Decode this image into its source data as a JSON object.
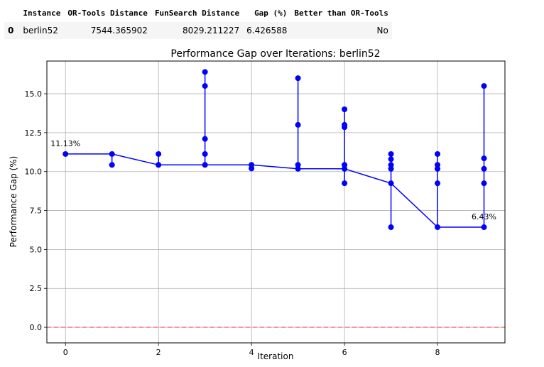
{
  "table": {
    "columns": [
      "",
      "Instance",
      "OR-Tools Distance",
      "FunSearch Distance",
      "Gap (%)",
      "Better than OR-Tools"
    ],
    "rows": [
      [
        "0",
        "berlin52",
        "7544.365902",
        "8029.211227",
        "6.426588",
        "No"
      ]
    ]
  },
  "chart_data": {
    "type": "line",
    "title": "Performance Gap over Iterations: berlin52",
    "xlabel": "Iteration",
    "ylabel": "Performance Gap (%)",
    "xlim": [
      -0.4,
      9.45
    ],
    "ylim": [
      -1.0,
      17.1
    ],
    "xticks": [
      0,
      2,
      4,
      6,
      8
    ],
    "yticks": [
      0.0,
      2.5,
      5.0,
      7.5,
      10.0,
      12.5,
      15.0
    ],
    "grid": true,
    "series_color": "#0000ff",
    "reference_line": {
      "y": 0.0,
      "color": "#ff4d4d",
      "style": "dashed"
    },
    "best_per_iteration": {
      "x": [
        0,
        1,
        2,
        3,
        4,
        5,
        6,
        7,
        8,
        9
      ],
      "y": [
        11.13,
        11.13,
        10.43,
        10.43,
        10.43,
        10.18,
        10.18,
        9.25,
        6.43,
        6.43
      ]
    },
    "scatter": [
      {
        "x": 0,
        "y": [
          11.13
        ]
      },
      {
        "x": 1,
        "y": [
          11.13,
          10.43
        ]
      },
      {
        "x": 2,
        "y": [
          11.13,
          10.43
        ]
      },
      {
        "x": 3,
        "y": [
          16.4,
          15.5,
          12.1,
          11.13,
          10.43
        ]
      },
      {
        "x": 4,
        "y": [
          10.43,
          10.2
        ]
      },
      {
        "x": 5,
        "y": [
          16.0,
          13.0,
          10.43,
          10.18
        ]
      },
      {
        "x": 6,
        "y": [
          14.0,
          13.0,
          12.85,
          10.43,
          10.18,
          9.25
        ]
      },
      {
        "x": 7,
        "y": [
          11.13,
          10.8,
          10.43,
          10.18,
          9.25,
          6.43
        ]
      },
      {
        "x": 8,
        "y": [
          11.13,
          10.43,
          10.18,
          9.25,
          6.43
        ]
      },
      {
        "x": 9,
        "y": [
          15.5,
          10.85,
          10.18,
          9.25,
          6.43
        ]
      }
    ],
    "annotations": [
      {
        "text": "11.13%",
        "x": 0,
        "y": 11.13
      },
      {
        "text": "6.43%",
        "x": 9,
        "y": 6.43
      }
    ]
  }
}
